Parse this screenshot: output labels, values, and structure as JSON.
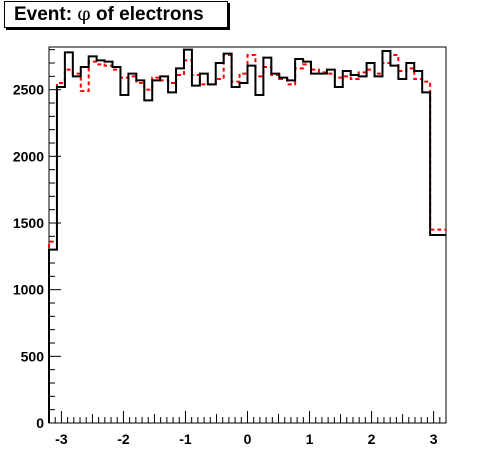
{
  "title": {
    "prefix": "Event: ",
    "symbol": "φ",
    "suffix": " of electrons"
  },
  "chart_data": {
    "type": "histogram",
    "title": "Event: φ of electrons",
    "xlabel": "",
    "ylabel": "",
    "xlim": [
      -3.2,
      3.2
    ],
    "ylim": [
      0,
      2820
    ],
    "x_ticks": [
      -3,
      -2,
      -1,
      0,
      1,
      2,
      3
    ],
    "x_tick_labels": [
      "-3",
      "-2",
      "-1",
      "0",
      "1",
      "2",
      "3"
    ],
    "y_ticks": [
      0,
      500,
      1000,
      1500,
      2000,
      2500
    ],
    "y_tick_labels": [
      "0",
      "500",
      "1000",
      "1500",
      "2000",
      "2500"
    ],
    "bin_edges_from": -3.2,
    "bin_width": 0.128,
    "grid": false,
    "colors": {
      "series_1": "#000000",
      "series_2": "#ff0000"
    },
    "series": [
      {
        "line_style": "solid",
        "values": [
          1300,
          2520,
          2780,
          2600,
          2670,
          2750,
          2720,
          2710,
          2670,
          2460,
          2620,
          2570,
          2420,
          2570,
          2600,
          2480,
          2660,
          2800,
          2530,
          2620,
          2540,
          2700,
          2770,
          2520,
          2550,
          2680,
          2460,
          2740,
          2620,
          2590,
          2570,
          2730,
          2710,
          2620,
          2620,
          2650,
          2520,
          2640,
          2610,
          2600,
          2700,
          2600,
          2790,
          2680,
          2580,
          2700,
          2640,
          2480,
          1410,
          1410
        ]
      },
      {
        "line_style": "dashed",
        "values": [
          1360,
          2550,
          2650,
          2620,
          2490,
          2710,
          2690,
          2680,
          2650,
          2590,
          2600,
          2550,
          2500,
          2590,
          2570,
          2550,
          2610,
          2720,
          2610,
          2540,
          2540,
          2580,
          2760,
          2560,
          2620,
          2760,
          2600,
          2670,
          2610,
          2580,
          2540,
          2660,
          2690,
          2650,
          2630,
          2620,
          2590,
          2600,
          2580,
          2630,
          2650,
          2620,
          2700,
          2760,
          2640,
          2660,
          2580,
          2560,
          1450,
          1450
        ]
      }
    ]
  }
}
